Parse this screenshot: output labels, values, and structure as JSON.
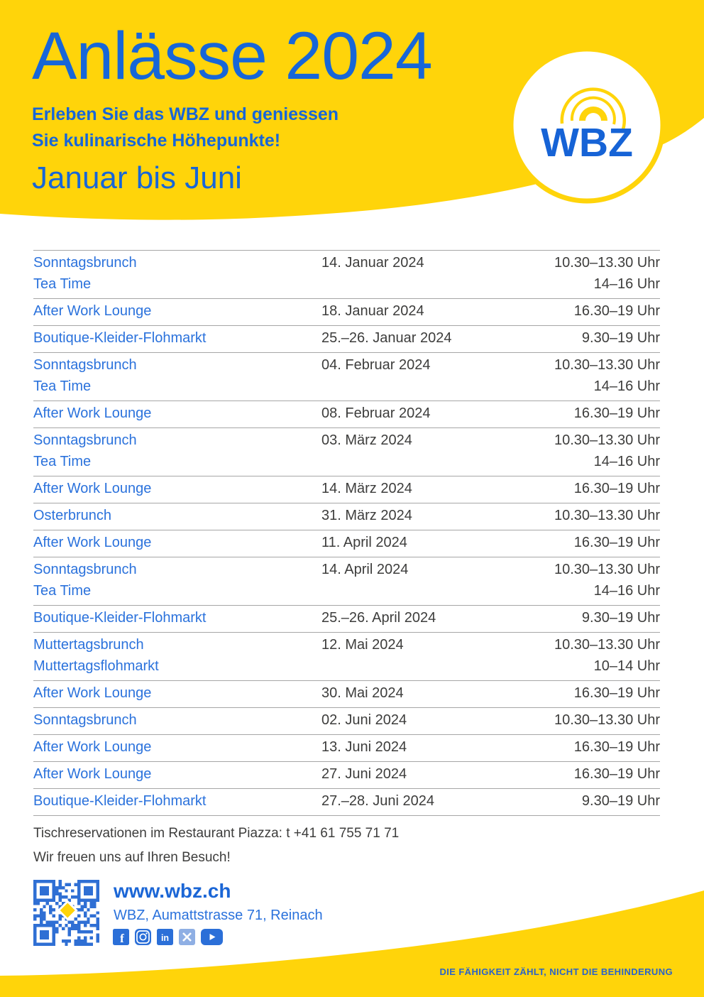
{
  "header": {
    "title": "Anlässe 2024",
    "subtitle_line1": "Erleben Sie das WBZ und geniessen",
    "subtitle_line2": "Sie kulinarische Höhepunkte!",
    "period": "Januar bis Juni",
    "logo_text": "WBZ"
  },
  "events": [
    {
      "rows": [
        {
          "name": "Sonntagsbrunch",
          "date": "14. Januar 2024",
          "time": "10.30–13.30 Uhr"
        },
        {
          "name": "Tea Time",
          "date": "",
          "time": "14–16 Uhr"
        }
      ]
    },
    {
      "rows": [
        {
          "name": "After Work Lounge",
          "date": "18. Januar 2024",
          "time": "16.30–19 Uhr"
        }
      ]
    },
    {
      "rows": [
        {
          "name": "Boutique-Kleider-Flohmarkt",
          "date": "25.–26. Januar 2024",
          "time": "9.30–19 Uhr"
        }
      ]
    },
    {
      "rows": [
        {
          "name": "Sonntagsbrunch",
          "date": "04. Februar 2024",
          "time": "10.30–13.30 Uhr"
        },
        {
          "name": "Tea Time",
          "date": "",
          "time": "14–16 Uhr"
        }
      ]
    },
    {
      "rows": [
        {
          "name": "After Work Lounge",
          "date": "08. Februar 2024",
          "time": "16.30–19 Uhr"
        }
      ]
    },
    {
      "rows": [
        {
          "name": "Sonntagsbrunch",
          "date": "03. März 2024",
          "time": "10.30–13.30 Uhr"
        },
        {
          "name": "Tea Time",
          "date": "",
          "time": "14–16 Uhr"
        }
      ]
    },
    {
      "rows": [
        {
          "name": "After Work Lounge",
          "date": "14. März 2024",
          "time": "16.30–19 Uhr"
        }
      ]
    },
    {
      "rows": [
        {
          "name": "Osterbrunch",
          "date": "31. März 2024",
          "time": "10.30–13.30 Uhr"
        }
      ]
    },
    {
      "rows": [
        {
          "name": "After Work Lounge",
          "date": "11. April 2024",
          "time": "16.30–19 Uhr"
        }
      ]
    },
    {
      "rows": [
        {
          "name": "Sonntagsbrunch",
          "date": "14. April 2024",
          "time": "10.30–13.30 Uhr"
        },
        {
          "name": "Tea Time",
          "date": "",
          "time": "14–16 Uhr"
        }
      ]
    },
    {
      "rows": [
        {
          "name": "Boutique-Kleider-Flohmarkt",
          "date": "25.–26. April 2024",
          "time": "9.30–19 Uhr"
        }
      ]
    },
    {
      "rows": [
        {
          "name": "Muttertagsbrunch",
          "date": "12. Mai 2024",
          "time": "10.30–13.30 Uhr"
        },
        {
          "name": "Muttertagsflohmarkt",
          "date": "",
          "time": "10–14 Uhr"
        }
      ]
    },
    {
      "rows": [
        {
          "name": "After Work Lounge",
          "date": "30. Mai 2024",
          "time": "16.30–19 Uhr"
        }
      ]
    },
    {
      "rows": [
        {
          "name": "Sonntagsbrunch",
          "date": "02. Juni 2024",
          "time": "10.30–13.30 Uhr"
        }
      ]
    },
    {
      "rows": [
        {
          "name": "After Work Lounge",
          "date": "13. Juni 2024",
          "time": "16.30–19 Uhr"
        }
      ]
    },
    {
      "rows": [
        {
          "name": "After Work Lounge",
          "date": "27. Juni 2024",
          "time": "16.30–19 Uhr"
        }
      ]
    },
    {
      "rows": [
        {
          "name": "Boutique-Kleider-Flohmarkt",
          "date": "27.–28. Juni 2024",
          "time": "9.30–19 Uhr"
        }
      ]
    }
  ],
  "footer": {
    "reservation": "Tischreservationen im Restaurant Piazza: t +41 61 755 71 71",
    "welcome": "Wir freuen uns auf Ihren Besuch!",
    "website": "www.wbz.ch",
    "address": "WBZ, Aumattstrasse 71, Reinach",
    "social": [
      "facebook",
      "instagram",
      "linkedin",
      "x",
      "youtube"
    ],
    "tagline": "DIE FÄHIGKEIT ZÄHLT, NICHT DIE BEHINDERUNG"
  },
  "colors": {
    "yellow": "#FFD40A",
    "accent_blue": "#1766D8",
    "item_blue": "#2B72DC",
    "text_dark": "#3D3D3C",
    "line_gray": "#A6A6A6",
    "qr_blue": "#2F6FD4"
  }
}
